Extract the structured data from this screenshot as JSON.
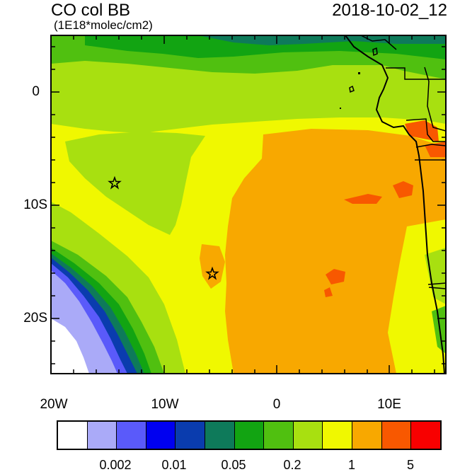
{
  "header": {
    "title": "CO col BB",
    "units": "(1E18*molec/cm2)",
    "datetime": "2018-10-02_12"
  },
  "map": {
    "lat_labels": [
      "0",
      "10S",
      "20S"
    ],
    "lon_labels": [
      "20W",
      "10W",
      "0",
      "10E"
    ],
    "markers": [
      {
        "type": "star",
        "lon": -14.4,
        "lat": -8.0
      },
      {
        "type": "star",
        "lon": -5.7,
        "lat": -16.0
      }
    ],
    "colors": {
      "bin_0": "#ffffff",
      "bin_1": "#aaaaf8",
      "bin_2": "#5a5afa",
      "bin_3": "#0000f0",
      "bin_4": "#0a3cae",
      "bin_5": "#0e7a5a",
      "bin_6": "#12a412",
      "bin_7": "#50c010",
      "bin_8": "#a8e010",
      "bin_9": "#f0f800",
      "bin_10": "#f8a800",
      "bin_11": "#f85800",
      "bin_12": "#f80000"
    }
  },
  "colorbar": {
    "colors": [
      "#ffffff",
      "#aaaaf8",
      "#5a5afa",
      "#0000f0",
      "#0a3cae",
      "#0e7a5a",
      "#12a412",
      "#50c010",
      "#a8e010",
      "#f0f800",
      "#f8a800",
      "#f85800",
      "#f80000"
    ],
    "labels": [
      "0.002",
      "0.01",
      "0.05",
      "0.2",
      "1",
      "5"
    ]
  }
}
